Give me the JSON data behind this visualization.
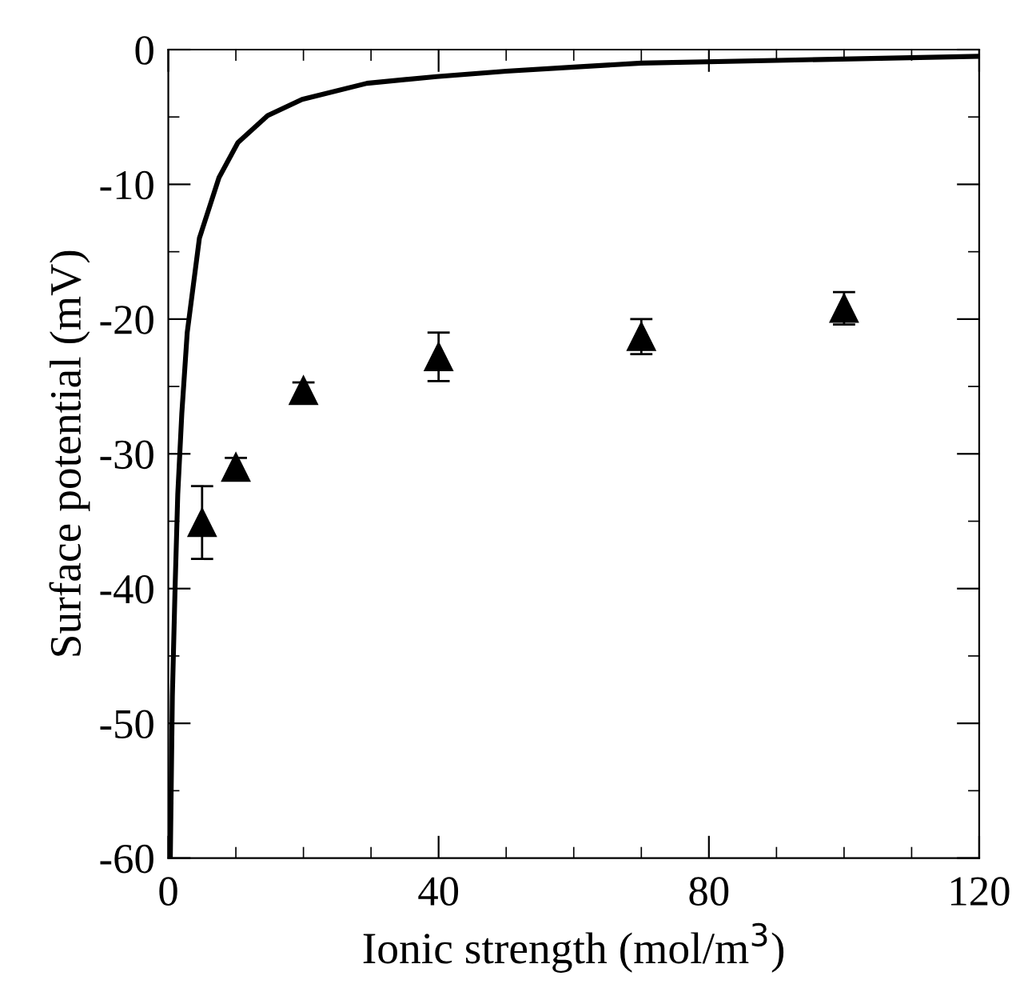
{
  "chart_data": {
    "type": "line",
    "xlabel": "Ionic strength (mol/m$^{3}$)",
    "ylabel": "Surface potential (mV)",
    "xlim": [
      0,
      120
    ],
    "ylim": [
      -60,
      0
    ],
    "xticks": [
      0,
      40,
      80,
      120
    ],
    "yticks": [
      -60,
      -50,
      -40,
      -30,
      -20,
      -10,
      0
    ],
    "grid": false,
    "legend": false,
    "series": [
      {
        "color": "#000000",
        "marker": "none",
        "line_style": "solid",
        "x": [
          0.3,
          0.6,
          1.0,
          1.4,
          2.0,
          2.8,
          4.6,
          7.5,
          10.3,
          14.7,
          19.8,
          29.4,
          39.7,
          50,
          60,
          70,
          90,
          120
        ],
        "values": [
          -60,
          -48,
          -40,
          -33,
          -27,
          -21,
          -14,
          -9.5,
          -6.9,
          -4.9,
          -3.7,
          -2.5,
          -2.0,
          -1.6,
          -1.3,
          -1.0,
          -0.8,
          -0.5
        ]
      },
      {
        "type": "scatter",
        "color": "#000000",
        "marker": "triangle",
        "x": [
          5,
          10,
          20,
          40,
          70,
          100
        ],
        "values": [
          -35.1,
          -31.0,
          -25.3,
          -22.8,
          -21.3,
          -19.2
        ],
        "errors": [
          2.7,
          0.7,
          0.6,
          1.8,
          1.3,
          1.2
        ]
      }
    ]
  }
}
